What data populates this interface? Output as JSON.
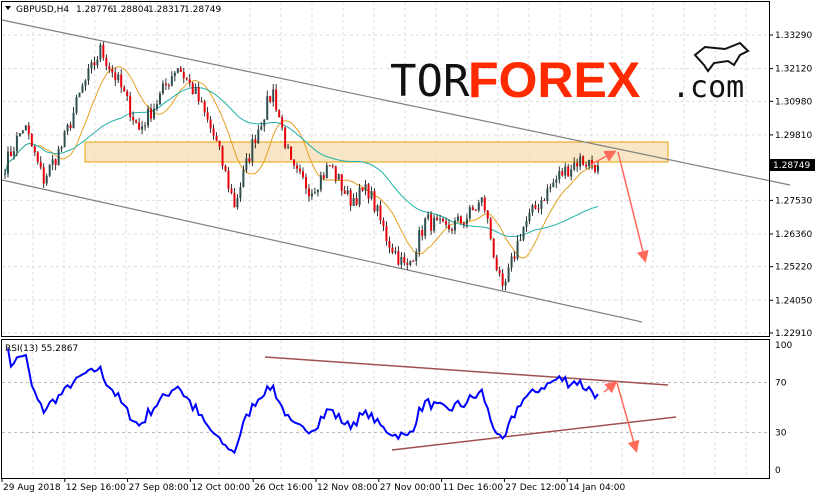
{
  "header": {
    "symbol": "GBPUSD,H4",
    "open": "1.28776",
    "high": "1.28804",
    "low": "1.28317",
    "close": "1.28749"
  },
  "logo": {
    "text_a": "TOR",
    "text_b": "FOREX",
    "text_c": ".com"
  },
  "colors": {
    "bull": "#2f4f4f",
    "bear": "#e8000b",
    "ma_fast": "#e6a020",
    "ma_slow": "#20b2aa",
    "rsi": "#0000ff",
    "channel": "#808080",
    "rsi_trend": "#a05050",
    "arrow": "#ff6a5a",
    "zone_fill": "#f5deb3",
    "zone_stroke": "#e8a000"
  },
  "chart_data": {
    "type": "candlestick",
    "price_axis": {
      "ticks": [
        "1.33290",
        "1.32120",
        "1.30980",
        "1.29810",
        "1.27530",
        "1.26360",
        "1.25220",
        "1.24050",
        "1.22910"
      ],
      "range": [
        1.2291,
        1.3329
      ],
      "current": "1.28749"
    },
    "time_axis": {
      "ticks": [
        "29 Aug 2018",
        "12 Sep 16:00",
        "27 Sep 08:00",
        "12 Oct 00:00",
        "26 Oct 16:00",
        "12 Nov 08:00",
        "27 Nov 00:00",
        "11 Dec 16:00",
        "27 Dec 12:00",
        "14 Jan 04:00"
      ]
    },
    "close_path": [
      1.2876,
      1.3016,
      1.2824,
      1.2946,
      1.3137,
      1.3277,
      1.3155,
      1.2998,
      1.3103,
      1.3225,
      1.312,
      1.2963,
      1.2737,
      1.2963,
      1.3137,
      1.2859,
      1.2789,
      1.2876,
      1.2754,
      1.2789,
      1.2615,
      1.251,
      1.2685,
      1.265,
      1.2685,
      1.2754,
      1.2423,
      1.265,
      1.2754,
      1.2841,
      1.2894,
      1.2875
    ],
    "rsi": {
      "label": "RSI(13) 55.2867",
      "ticks": [
        "100",
        "70",
        "30",
        "0"
      ],
      "levels": [
        70,
        30
      ],
      "range": [
        0,
        100
      ]
    }
  }
}
